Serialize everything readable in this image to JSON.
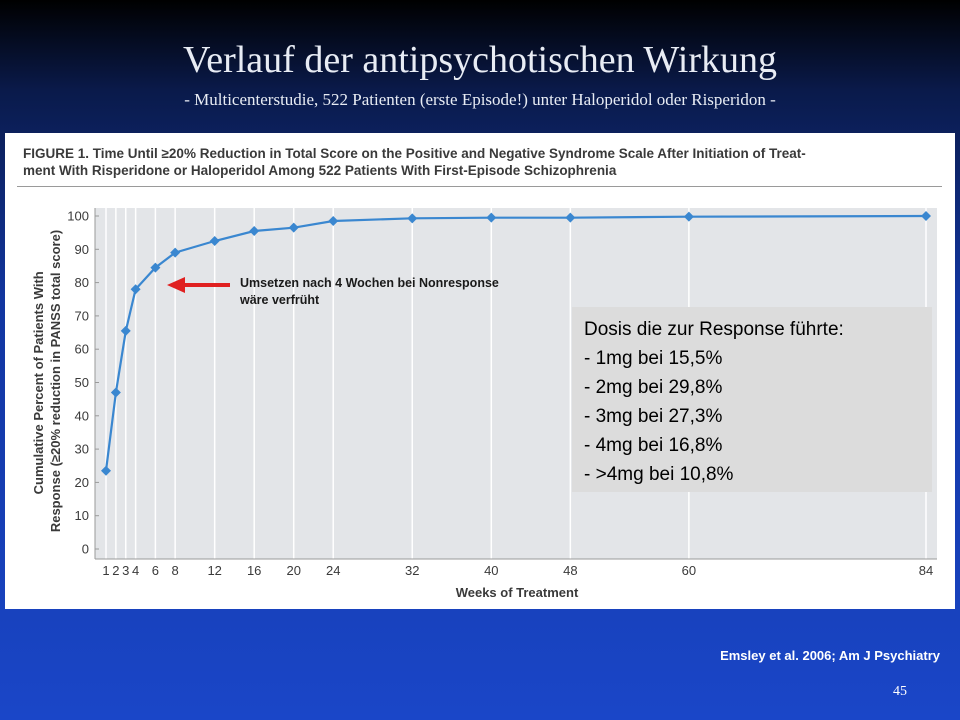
{
  "slide": {
    "title": "Verlauf der antipsychotischen Wirkung",
    "subtitle": "- Multicenterstudie, 522 Patienten (erste Episode!) unter Haloperidol oder Risperidon -",
    "citation": "Emsley et al. 2006; Am J Psychiatry",
    "page_number": "45"
  },
  "figure": {
    "caption_line1": "FIGURE 1. Time Until ≥20% Reduction in Total Score on the Positive and Negative Syndrome Scale After Initiation of Treat-",
    "caption_line2": "ment With Risperidone or Haloperidol Among 522 Patients With First-Episode Schizophrenia",
    "annotation_line1": "Umsetzen nach 4 Wochen bei Nonresponse",
    "annotation_line2": "wäre verfrüht",
    "dose_box": {
      "heading": "Dosis die zur Response führte:",
      "items": [
        "- 1mg bei 15,5%",
        "- 2mg bei 29,8%",
        "- 3mg bei 27,3%",
        "- 4mg bei 16,8%",
        "- >4mg bei 10,8%"
      ]
    }
  },
  "colors": {
    "series": "#3a87d0",
    "plot_background": "#e3e5e8",
    "arrow": "#e02020"
  },
  "chart_data": {
    "type": "line",
    "xlabel": "Weeks of Treatment",
    "ylabel_line1": "Cumulative Percent of Patients With",
    "ylabel_line2": "Response (≥20% reduction in PANSS total score)",
    "x_ticks": [
      "1",
      "2",
      "3",
      "4",
      "6",
      "8",
      "12",
      "16",
      "20",
      "24",
      "32",
      "40",
      "48",
      "60",
      "84"
    ],
    "y_ticks": [
      "0",
      "10",
      "20",
      "30",
      "40",
      "50",
      "60",
      "70",
      "80",
      "90",
      "100"
    ],
    "ylim": [
      0,
      100
    ],
    "grid": "vertical",
    "x": [
      1,
      2,
      3,
      4,
      6,
      8,
      12,
      16,
      20,
      24,
      32,
      40,
      48,
      60,
      84
    ],
    "values": [
      23.5,
      47,
      65.5,
      78,
      84.5,
      89,
      92.5,
      95.5,
      96.5,
      98.5,
      99.3,
      99.5,
      99.5,
      99.8,
      100
    ]
  }
}
